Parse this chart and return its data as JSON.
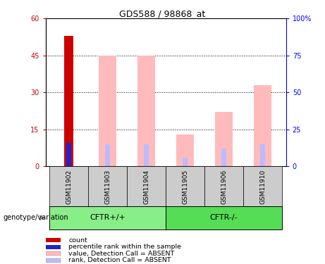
{
  "title": "GDS588 / 98868_at",
  "samples": [
    "GSM11902",
    "GSM11903",
    "GSM11904",
    "GSM11905",
    "GSM11906",
    "GSM11910"
  ],
  "count_value": {
    "GSM11902": 53
  },
  "percentile_rank": {
    "GSM11902": 16
  },
  "absent_value": {
    "GSM11902": 0,
    "GSM11903": 45,
    "GSM11904": 45,
    "GSM11905": 13,
    "GSM11906": 22,
    "GSM11910": 33
  },
  "absent_rank": {
    "GSM11902": 16,
    "GSM11903": 15,
    "GSM11904": 15,
    "GSM11905": 6,
    "GSM11906": 12,
    "GSM11910": 15
  },
  "ylim_left": [
    0,
    60
  ],
  "ylim_right": [
    0,
    100
  ],
  "yticks_left": [
    0,
    15,
    30,
    45,
    60
  ],
  "yticks_right": [
    0,
    25,
    50,
    75,
    100
  ],
  "yticklabels_right": [
    "0",
    "25",
    "50",
    "75",
    "100%"
  ],
  "color_count": "#cc0000",
  "color_percentile": "#2222cc",
  "color_absent_value": "#ffbbbb",
  "color_absent_rank": "#bbbbff",
  "group_color_1": "#88ee88",
  "group_color_2": "#55dd55",
  "group_bg": "#cccccc",
  "legend_items": [
    {
      "label": "count",
      "color": "#cc0000"
    },
    {
      "label": "percentile rank within the sample",
      "color": "#2222cc"
    },
    {
      "label": "value, Detection Call = ABSENT",
      "color": "#ffbbbb"
    },
    {
      "label": "rank, Detection Call = ABSENT",
      "color": "#bbbbff"
    }
  ],
  "grid_ticks": [
    15,
    30,
    45
  ]
}
